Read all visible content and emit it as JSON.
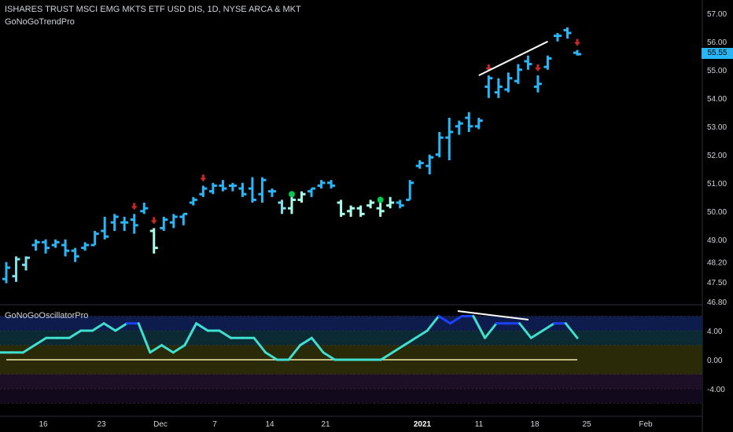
{
  "header": {
    "title": "ISHARES TRUST MSCI EMG MKTS ETF USD DIS, 1D, NYSE ARCA & MKT",
    "indicator": "GoNoGoTrendPro"
  },
  "oscillator": {
    "label": "GoNoGoOscillatorPro",
    "ticks": [
      "4.00",
      "0.00",
      "-4.00"
    ],
    "values": [
      1,
      1,
      1,
      2,
      3,
      3,
      3,
      4,
      4,
      5,
      4,
      5,
      5,
      1,
      2,
      1,
      2,
      5,
      4,
      4,
      3,
      3,
      3,
      1,
      0,
      0,
      2,
      3,
      1,
      0,
      0,
      0,
      0,
      0,
      1,
      2,
      3,
      4,
      6,
      5,
      6,
      6,
      3,
      5,
      5,
      5,
      3,
      4,
      5,
      5,
      3
    ],
    "zero_line": 0
  },
  "price_axis": {
    "ticks": [
      "57.00",
      "56.00",
      "55.00",
      "54.00",
      "53.00",
      "52.00",
      "51.00",
      "50.00",
      "49.00",
      "48.20",
      "47.50",
      "46.80"
    ],
    "last_price": "55.55"
  },
  "time_axis": {
    "labels": [
      "16",
      "23",
      "Dec",
      "7",
      "14",
      "21",
      "2021",
      "11",
      "18",
      "25",
      "Feb"
    ]
  },
  "colors": {
    "background": "#000000",
    "go_strong": "#1e88e5",
    "go": "#29b6f6",
    "go_light": "#80deea",
    "nogo_light": "#a7ffeb",
    "osc_line": "#40e0d0",
    "osc_strong": "#1e40ff",
    "signal_down": "#c62828",
    "signal_dot": "#00c853",
    "divergence": "#ffffff"
  },
  "chart_data": {
    "type": "ohlc",
    "series": [
      {
        "o": 47.6,
        "h": 48.2,
        "l": 47.45,
        "c": 48.0,
        "color": "go"
      },
      {
        "o": 47.7,
        "h": 48.4,
        "l": 47.5,
        "c": 48.3,
        "color": "go_light"
      },
      {
        "o": 48.1,
        "h": 48.4,
        "l": 47.9,
        "c": 48.35,
        "color": "go_light"
      },
      {
        "o": 48.8,
        "h": 49.0,
        "l": 48.6,
        "c": 48.9,
        "color": "go"
      },
      {
        "o": 48.9,
        "h": 49.0,
        "l": 48.5,
        "c": 48.7,
        "color": "go"
      },
      {
        "o": 48.8,
        "h": 49.0,
        "l": 48.7,
        "c": 48.9,
        "color": "go"
      },
      {
        "o": 48.8,
        "h": 49.0,
        "l": 48.4,
        "c": 48.6,
        "color": "go"
      },
      {
        "o": 48.6,
        "h": 48.7,
        "l": 48.2,
        "c": 48.4,
        "color": "go"
      },
      {
        "o": 48.7,
        "h": 48.9,
        "l": 48.6,
        "c": 48.8,
        "color": "go"
      },
      {
        "o": 48.8,
        "h": 49.3,
        "l": 48.8,
        "c": 49.2,
        "color": "go"
      },
      {
        "o": 49.3,
        "h": 49.8,
        "l": 49.0,
        "c": 49.1,
        "color": "go"
      },
      {
        "o": 49.6,
        "h": 49.9,
        "l": 49.3,
        "c": 49.8,
        "color": "go"
      },
      {
        "o": 49.6,
        "h": 49.8,
        "l": 49.3,
        "c": 49.6,
        "color": "go"
      },
      {
        "o": 49.7,
        "h": 49.9,
        "l": 49.2,
        "c": 49.5,
        "color": "go"
      },
      {
        "o": 50.0,
        "h": 50.3,
        "l": 49.9,
        "c": 50.1,
        "color": "go"
      },
      {
        "o": 49.3,
        "h": 49.4,
        "l": 48.5,
        "c": 48.7,
        "color": "nogo_light"
      },
      {
        "o": 49.4,
        "h": 49.8,
        "l": 49.3,
        "c": 49.7,
        "color": "go"
      },
      {
        "o": 49.6,
        "h": 49.9,
        "l": 49.4,
        "c": 49.8,
        "color": "go"
      },
      {
        "o": 49.8,
        "h": 49.9,
        "l": 49.5,
        "c": 49.9,
        "color": "go"
      },
      {
        "o": 50.3,
        "h": 50.5,
        "l": 50.2,
        "c": 50.4,
        "color": "go"
      },
      {
        "o": 50.6,
        "h": 50.9,
        "l": 50.5,
        "c": 50.8,
        "color": "go"
      },
      {
        "o": 50.7,
        "h": 51.0,
        "l": 50.6,
        "c": 50.9,
        "color": "go"
      },
      {
        "o": 50.9,
        "h": 51.1,
        "l": 50.7,
        "c": 50.8,
        "color": "go"
      },
      {
        "o": 50.9,
        "h": 51.0,
        "l": 50.7,
        "c": 50.9,
        "color": "go"
      },
      {
        "o": 50.8,
        "h": 51.0,
        "l": 50.5,
        "c": 50.6,
        "color": "go"
      },
      {
        "o": 50.8,
        "h": 51.2,
        "l": 50.3,
        "c": 50.4,
        "color": "go"
      },
      {
        "o": 50.6,
        "h": 51.2,
        "l": 50.3,
        "c": 51.1,
        "color": "go"
      },
      {
        "o": 50.7,
        "h": 50.8,
        "l": 50.5,
        "c": 50.7,
        "color": "go"
      },
      {
        "o": 50.3,
        "h": 50.4,
        "l": 49.9,
        "c": 50.1,
        "color": "go_light"
      },
      {
        "o": 50.1,
        "h": 50.5,
        "l": 49.9,
        "c": 50.4,
        "color": "nogo_light"
      },
      {
        "o": 50.4,
        "h": 50.7,
        "l": 50.3,
        "c": 50.6,
        "color": "nogo_light"
      },
      {
        "o": 50.7,
        "h": 50.8,
        "l": 50.5,
        "c": 50.8,
        "color": "go"
      },
      {
        "o": 50.9,
        "h": 51.1,
        "l": 50.8,
        "c": 51.0,
        "color": "go"
      },
      {
        "o": 51.0,
        "h": 51.1,
        "l": 50.8,
        "c": 50.9,
        "color": "go"
      },
      {
        "o": 50.3,
        "h": 50.4,
        "l": 49.8,
        "c": 49.9,
        "color": "nogo_light"
      },
      {
        "o": 50.0,
        "h": 50.2,
        "l": 49.8,
        "c": 50.1,
        "color": "nogo_light"
      },
      {
        "o": 50.1,
        "h": 50.2,
        "l": 49.8,
        "c": 49.9,
        "color": "nogo_light"
      },
      {
        "o": 50.2,
        "h": 50.4,
        "l": 50.1,
        "c": 50.3,
        "color": "nogo_light"
      },
      {
        "o": 50.1,
        "h": 50.3,
        "l": 49.8,
        "c": 50.0,
        "color": "nogo_light"
      },
      {
        "o": 50.2,
        "h": 50.5,
        "l": 50.1,
        "c": 50.3,
        "color": "nogo_light"
      },
      {
        "o": 50.3,
        "h": 50.4,
        "l": 50.1,
        "c": 50.2,
        "color": "go"
      },
      {
        "o": 50.4,
        "h": 51.1,
        "l": 50.4,
        "c": 51.0,
        "color": "go"
      },
      {
        "o": 51.6,
        "h": 51.8,
        "l": 51.5,
        "c": 51.7,
        "color": "go"
      },
      {
        "o": 51.6,
        "h": 52.0,
        "l": 51.3,
        "c": 51.9,
        "color": "go"
      },
      {
        "o": 52.0,
        "h": 52.8,
        "l": 51.9,
        "c": 52.6,
        "color": "go"
      },
      {
        "o": 52.6,
        "h": 53.3,
        "l": 51.8,
        "c": 52.8,
        "color": "go"
      },
      {
        "o": 53.0,
        "h": 53.2,
        "l": 52.7,
        "c": 53.1,
        "color": "go"
      },
      {
        "o": 53.3,
        "h": 53.5,
        "l": 52.8,
        "c": 53.0,
        "color": "go"
      },
      {
        "o": 53.0,
        "h": 53.3,
        "l": 52.9,
        "c": 53.2,
        "color": "go"
      },
      {
        "o": 54.4,
        "h": 54.8,
        "l": 54.0,
        "c": 54.7,
        "color": "go"
      },
      {
        "o": 54.2,
        "h": 54.7,
        "l": 54.0,
        "c": 54.4,
        "color": "go"
      },
      {
        "o": 54.3,
        "h": 54.9,
        "l": 54.2,
        "c": 54.7,
        "color": "go"
      },
      {
        "o": 54.6,
        "h": 55.2,
        "l": 54.5,
        "c": 55.0,
        "color": "go"
      },
      {
        "o": 55.3,
        "h": 55.5,
        "l": 55.0,
        "c": 55.2,
        "color": "go"
      },
      {
        "o": 54.4,
        "h": 54.8,
        "l": 54.2,
        "c": 54.5,
        "color": "go"
      },
      {
        "o": 55.1,
        "h": 55.5,
        "l": 55.0,
        "c": 55.4,
        "color": "go"
      },
      {
        "o": 56.2,
        "h": 56.3,
        "l": 56.0,
        "c": 56.2,
        "color": "go"
      },
      {
        "o": 56.4,
        "h": 56.5,
        "l": 56.1,
        "c": 56.3,
        "color": "go"
      },
      {
        "o": 55.6,
        "h": 55.7,
        "l": 55.5,
        "c": 55.55,
        "color": "go"
      }
    ],
    "down_arrows": [
      13,
      15,
      20,
      49,
      54,
      58
    ],
    "green_dots": [
      {
        "bar": 29,
        "price": 50.6
      },
      {
        "bar": 38,
        "price": 50.4
      }
    ],
    "divergence_price": [
      {
        "bar": 48,
        "price": 54.8
      },
      {
        "bar": 55,
        "price": 56.0
      }
    ],
    "ylim": [
      46.8,
      57.3
    ]
  }
}
